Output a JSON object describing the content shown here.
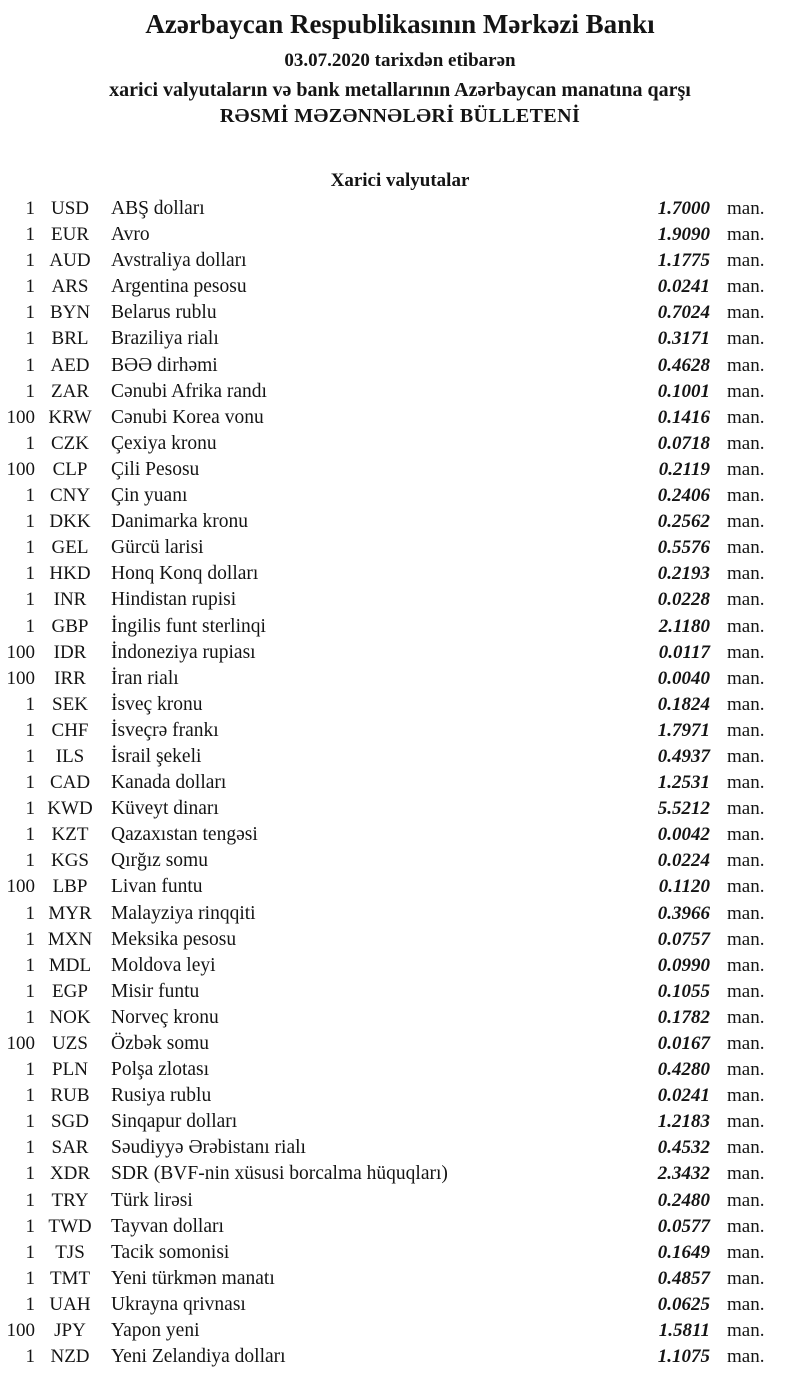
{
  "header": {
    "title": "Azərbaycan Respublikasının Mərkəzi Bankı",
    "date_line": "03.07.2020 tarixdən etibarən",
    "subtitle": "xarici valyutaların və bank metallarının Azərbaycan manatına qarşı",
    "bulletin_title": "RƏSMİ MƏZƏNNƏLƏRİ BÜLLETENİ"
  },
  "section": {
    "title": "Xarici valyutalar"
  },
  "rates": {
    "unit_label": "man.",
    "rows": [
      {
        "qty": "1",
        "code": "USD",
        "name": "ABŞ dolları",
        "rate": "1.7000"
      },
      {
        "qty": "1",
        "code": "EUR",
        "name": "Avro",
        "rate": "1.9090"
      },
      {
        "qty": "1",
        "code": "AUD",
        "name": "Avstraliya dolları",
        "rate": "1.1775"
      },
      {
        "qty": "1",
        "code": "ARS",
        "name": "Argentina pesosu",
        "rate": "0.0241"
      },
      {
        "qty": "1",
        "code": "BYN",
        "name": "Belarus rublu",
        "rate": "0.7024"
      },
      {
        "qty": "1",
        "code": "BRL",
        "name": "Braziliya rialı",
        "rate": "0.3171"
      },
      {
        "qty": "1",
        "code": "AED",
        "name": "BƏƏ dirhəmi",
        "rate": "0.4628"
      },
      {
        "qty": "1",
        "code": "ZAR",
        "name": "Cənubi Afrika randı",
        "rate": "0.1001"
      },
      {
        "qty": "100",
        "code": "KRW",
        "name": "Cənubi Korea vonu",
        "rate": "0.1416"
      },
      {
        "qty": "1",
        "code": "CZK",
        "name": "Çexiya kronu",
        "rate": "0.0718"
      },
      {
        "qty": "100",
        "code": "CLP",
        "name": "Çili Pesosu",
        "rate": "0.2119"
      },
      {
        "qty": "1",
        "code": "CNY",
        "name": "Çin yuanı",
        "rate": "0.2406"
      },
      {
        "qty": "1",
        "code": "DKK",
        "name": "Danimarka kronu",
        "rate": "0.2562"
      },
      {
        "qty": "1",
        "code": "GEL",
        "name": "Gürcü larisi",
        "rate": "0.5576"
      },
      {
        "qty": "1",
        "code": "HKD",
        "name": "Honq Konq dolları",
        "rate": "0.2193"
      },
      {
        "qty": "1",
        "code": "INR",
        "name": "Hindistan rupisi",
        "rate": "0.0228"
      },
      {
        "qty": "1",
        "code": "GBP",
        "name": "İngilis funt sterlinqi",
        "rate": "2.1180"
      },
      {
        "qty": "100",
        "code": "IDR",
        "name": "İndoneziya rupiası",
        "rate": "0.0117"
      },
      {
        "qty": "100",
        "code": "IRR",
        "name": "İran rialı",
        "rate": "0.0040"
      },
      {
        "qty": "1",
        "code": "SEK",
        "name": "İsveç kronu",
        "rate": "0.1824"
      },
      {
        "qty": "1",
        "code": "CHF",
        "name": "İsveçrə frankı",
        "rate": "1.7971"
      },
      {
        "qty": "1",
        "code": "ILS",
        "name": "İsrail şekeli",
        "rate": "0.4937"
      },
      {
        "qty": "1",
        "code": "CAD",
        "name": "Kanada dolları",
        "rate": "1.2531"
      },
      {
        "qty": "1",
        "code": "KWD",
        "name": "Küveyt dinarı",
        "rate": "5.5212"
      },
      {
        "qty": "1",
        "code": "KZT",
        "name": "Qazaxıstan tengəsi",
        "rate": "0.0042"
      },
      {
        "qty": "1",
        "code": "KGS",
        "name": "Qırğız somu",
        "rate": "0.0224"
      },
      {
        "qty": "100",
        "code": "LBP",
        "name": "Livan funtu",
        "rate": "0.1120"
      },
      {
        "qty": "1",
        "code": "MYR",
        "name": "Malayziya rinqqiti",
        "rate": "0.3966"
      },
      {
        "qty": "1",
        "code": "MXN",
        "name": "Meksika pesosu",
        "rate": "0.0757"
      },
      {
        "qty": "1",
        "code": "MDL",
        "name": "Moldova leyi",
        "rate": "0.0990"
      },
      {
        "qty": "1",
        "code": "EGP",
        "name": "Misir funtu",
        "rate": "0.1055"
      },
      {
        "qty": "1",
        "code": "NOK",
        "name": "Norveç kronu",
        "rate": "0.1782"
      },
      {
        "qty": "100",
        "code": "UZS",
        "name": "Özbək somu",
        "rate": "0.0167"
      },
      {
        "qty": "1",
        "code": "PLN",
        "name": "Polşa zlotası",
        "rate": "0.4280"
      },
      {
        "qty": "1",
        "code": "RUB",
        "name": "Rusiya rublu",
        "rate": "0.0241"
      },
      {
        "qty": "1",
        "code": "SGD",
        "name": "Sinqapur dolları",
        "rate": "1.2183"
      },
      {
        "qty": "1",
        "code": "SAR",
        "name": "Səudiyyə Ərəbistanı rialı",
        "rate": "0.4532"
      },
      {
        "qty": "1",
        "code": "XDR",
        "name": "SDR (BVF-nin xüsusi borcalma hüquqları)",
        "rate": "2.3432"
      },
      {
        "qty": "1",
        "code": "TRY",
        "name": "Türk lirəsi",
        "rate": "0.2480"
      },
      {
        "qty": "1",
        "code": "TWD",
        "name": "Tayvan dolları",
        "rate": "0.0577"
      },
      {
        "qty": "1",
        "code": "TJS",
        "name": "Tacik somonisi",
        "rate": "0.1649"
      },
      {
        "qty": "1",
        "code": "TMT",
        "name": "Yeni türkmən manatı",
        "rate": "0.4857"
      },
      {
        "qty": "1",
        "code": "UAH",
        "name": "Ukrayna qrivnası",
        "rate": "0.0625"
      },
      {
        "qty": "100",
        "code": "JPY",
        "name": "Yapon yeni",
        "rate": "1.5811"
      },
      {
        "qty": "1",
        "code": "NZD",
        "name": "Yeni Zelandiya dolları",
        "rate": "1.1075"
      }
    ]
  }
}
